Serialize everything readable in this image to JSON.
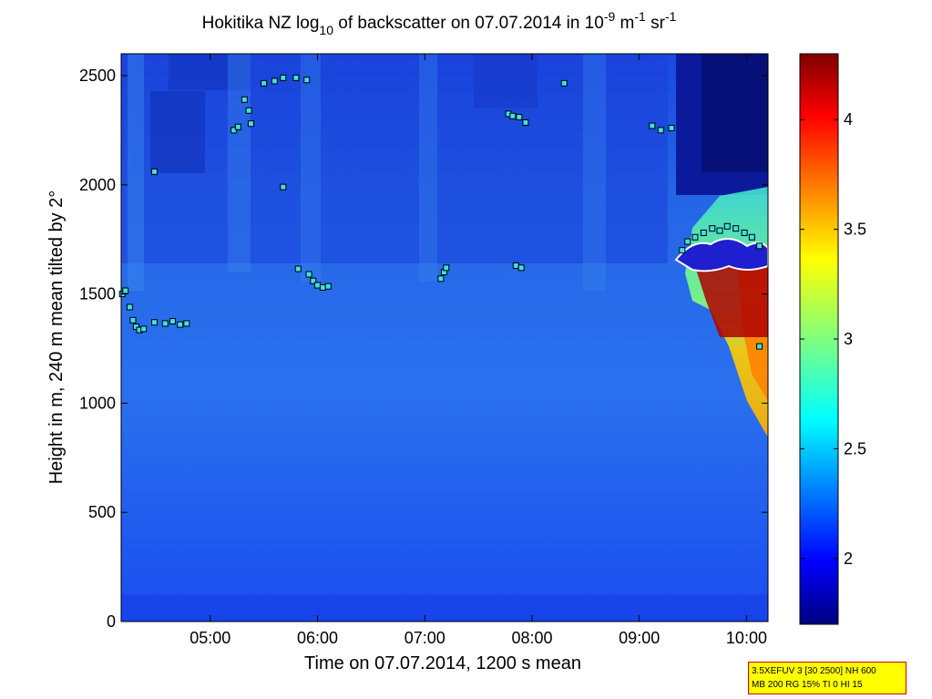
{
  "chart_data": {
    "type": "heatmap",
    "title": {
      "prefix": "Hokitika NZ log",
      "sub": "10",
      "middle": " of backscatter on 07.07.2014 in 10",
      "exp1": "-9",
      "unit1": " m",
      "exp2": "-1",
      "unit2": " sr",
      "exp3": "-1"
    },
    "xlabel": "Time on 07.07.2014, 1200 s mean",
    "ylabel": "Height in m, 240 m mean tilted by 2°",
    "xlim_hours": [
      4.17,
      10.2
    ],
    "ylim": [
      0,
      2600
    ],
    "xticks": [
      {
        "value": 5,
        "label": "05:00"
      },
      {
        "value": 6,
        "label": "06:00"
      },
      {
        "value": 7,
        "label": "07:00"
      },
      {
        "value": 8,
        "label": "08:00"
      },
      {
        "value": 9,
        "label": "09:00"
      },
      {
        "value": 10,
        "label": "10:00"
      }
    ],
    "yticks": [
      0,
      500,
      1000,
      1500,
      2000,
      2500
    ],
    "colorbar": {
      "range": [
        1.7,
        4.3
      ],
      "ticks": [
        2,
        2.5,
        3,
        3.5,
        4
      ],
      "colormap": "jet"
    },
    "cloud_base_points": [
      {
        "x": 4.18,
        "y": 1500
      },
      {
        "x": 4.21,
        "y": 1515
      },
      {
        "x": 4.25,
        "y": 1440
      },
      {
        "x": 4.28,
        "y": 1380
      },
      {
        "x": 4.31,
        "y": 1350
      },
      {
        "x": 4.34,
        "y": 1335
      },
      {
        "x": 4.38,
        "y": 1340
      },
      {
        "x": 4.48,
        "y": 1370
      },
      {
        "x": 4.58,
        "y": 1365
      },
      {
        "x": 4.65,
        "y": 1375
      },
      {
        "x": 4.72,
        "y": 1360
      },
      {
        "x": 4.78,
        "y": 1365
      },
      {
        "x": 4.48,
        "y": 2060
      },
      {
        "x": 5.22,
        "y": 2250
      },
      {
        "x": 5.26,
        "y": 2265
      },
      {
        "x": 5.32,
        "y": 2390
      },
      {
        "x": 5.36,
        "y": 2340
      },
      {
        "x": 5.38,
        "y": 2280
      },
      {
        "x": 5.5,
        "y": 2465
      },
      {
        "x": 5.6,
        "y": 2475
      },
      {
        "x": 5.68,
        "y": 2490
      },
      {
        "x": 5.8,
        "y": 2490
      },
      {
        "x": 5.9,
        "y": 2480
      },
      {
        "x": 5.68,
        "y": 1990
      },
      {
        "x": 5.82,
        "y": 1615
      },
      {
        "x": 5.92,
        "y": 1590
      },
      {
        "x": 5.96,
        "y": 1560
      },
      {
        "x": 6.0,
        "y": 1540
      },
      {
        "x": 6.05,
        "y": 1530
      },
      {
        "x": 6.1,
        "y": 1535
      },
      {
        "x": 7.15,
        "y": 1570
      },
      {
        "x": 7.18,
        "y": 1600
      },
      {
        "x": 7.2,
        "y": 1620
      },
      {
        "x": 7.78,
        "y": 2325
      },
      {
        "x": 7.82,
        "y": 2315
      },
      {
        "x": 7.88,
        "y": 2310
      },
      {
        "x": 7.94,
        "y": 2285
      },
      {
        "x": 7.85,
        "y": 1630
      },
      {
        "x": 7.9,
        "y": 1620
      },
      {
        "x": 8.3,
        "y": 2465
      },
      {
        "x": 9.12,
        "y": 2270
      },
      {
        "x": 9.2,
        "y": 2250
      },
      {
        "x": 9.3,
        "y": 2260
      },
      {
        "x": 9.4,
        "y": 1700
      },
      {
        "x": 9.45,
        "y": 1740
      },
      {
        "x": 9.52,
        "y": 1760
      },
      {
        "x": 9.6,
        "y": 1780
      },
      {
        "x": 9.68,
        "y": 1800
      },
      {
        "x": 9.75,
        "y": 1790
      },
      {
        "x": 9.82,
        "y": 1810
      },
      {
        "x": 9.9,
        "y": 1800
      },
      {
        "x": 9.98,
        "y": 1780
      },
      {
        "x": 10.05,
        "y": 1760
      },
      {
        "x": 10.12,
        "y": 1720
      },
      {
        "x": 10.12,
        "y": 1260
      }
    ]
  },
  "param_box": {
    "line1": "3.5XEFUV 3 [30 2500] NH 600",
    "line2": "MB 200 RG 15% TI 0 HI 15"
  }
}
